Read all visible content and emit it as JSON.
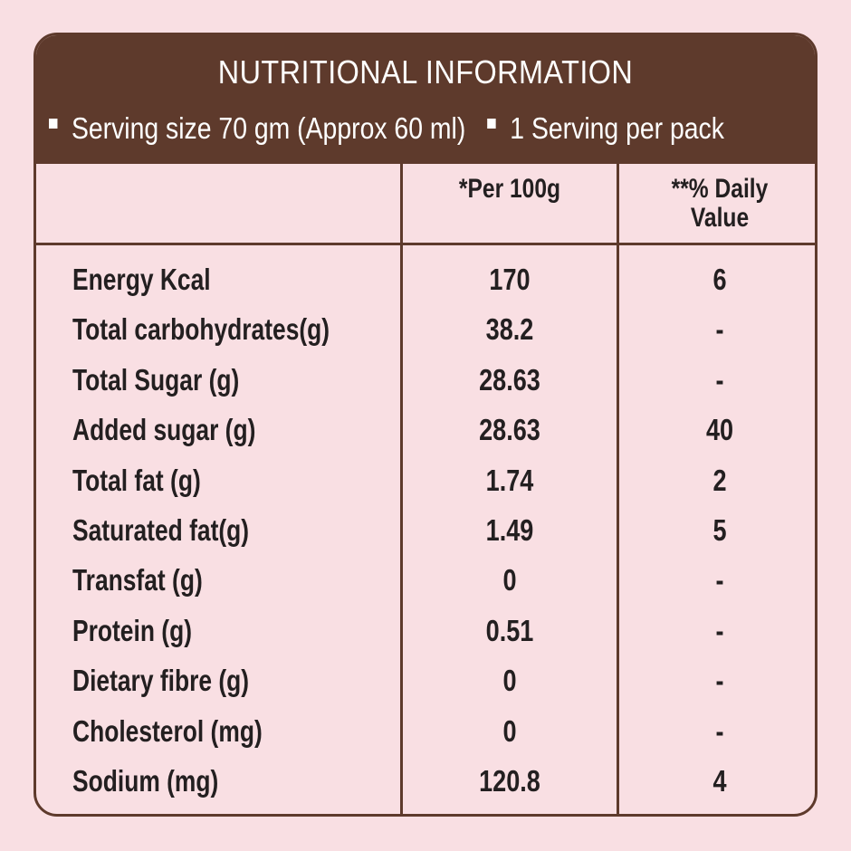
{
  "header": {
    "title": "NUTRITIONAL INFORMATION",
    "serving_size": "Serving size 70 gm (Approx  60 ml)",
    "servings_per_pack": "1 Serving per pack"
  },
  "table": {
    "columns": [
      "",
      "*Per 100g",
      "**% Daily Value"
    ],
    "col_per_100g": "*Per 100g",
    "col_daily_value_line1": "**% Daily",
    "col_daily_value_line2": "Value",
    "rows": [
      {
        "label": "Energy Kcal",
        "per_100g": "170",
        "daily_value": "6"
      },
      {
        "label": "Total carbohydrates(g)",
        "per_100g": "38.2",
        "daily_value": "-"
      },
      {
        "label": "Total Sugar (g)",
        "per_100g": "28.63",
        "daily_value": "-"
      },
      {
        "label": "Added sugar (g)",
        "per_100g": "28.63",
        "daily_value": "40"
      },
      {
        "label": "Total fat (g)",
        "per_100g": "1.74",
        "daily_value": "2"
      },
      {
        "label": "Saturated fat(g)",
        "per_100g": "1.49",
        "daily_value": "5"
      },
      {
        "label": "Transfat (g)",
        "per_100g": "0",
        "daily_value": "-"
      },
      {
        "label": "Protein (g)",
        "per_100g": "0.51",
        "daily_value": "-"
      },
      {
        "label": "Dietary fibre (g)",
        "per_100g": "0",
        "daily_value": "-"
      },
      {
        "label": "Cholesterol (mg)",
        "per_100g": "0",
        "daily_value": "-"
      },
      {
        "label": "Sodium (mg)",
        "per_100g": "120.8",
        "daily_value": "4"
      }
    ]
  },
  "colors": {
    "background": "#f9dfe3",
    "brand_brown": "#5e3a2c",
    "text": "#231f20",
    "header_text": "#ffffff"
  }
}
